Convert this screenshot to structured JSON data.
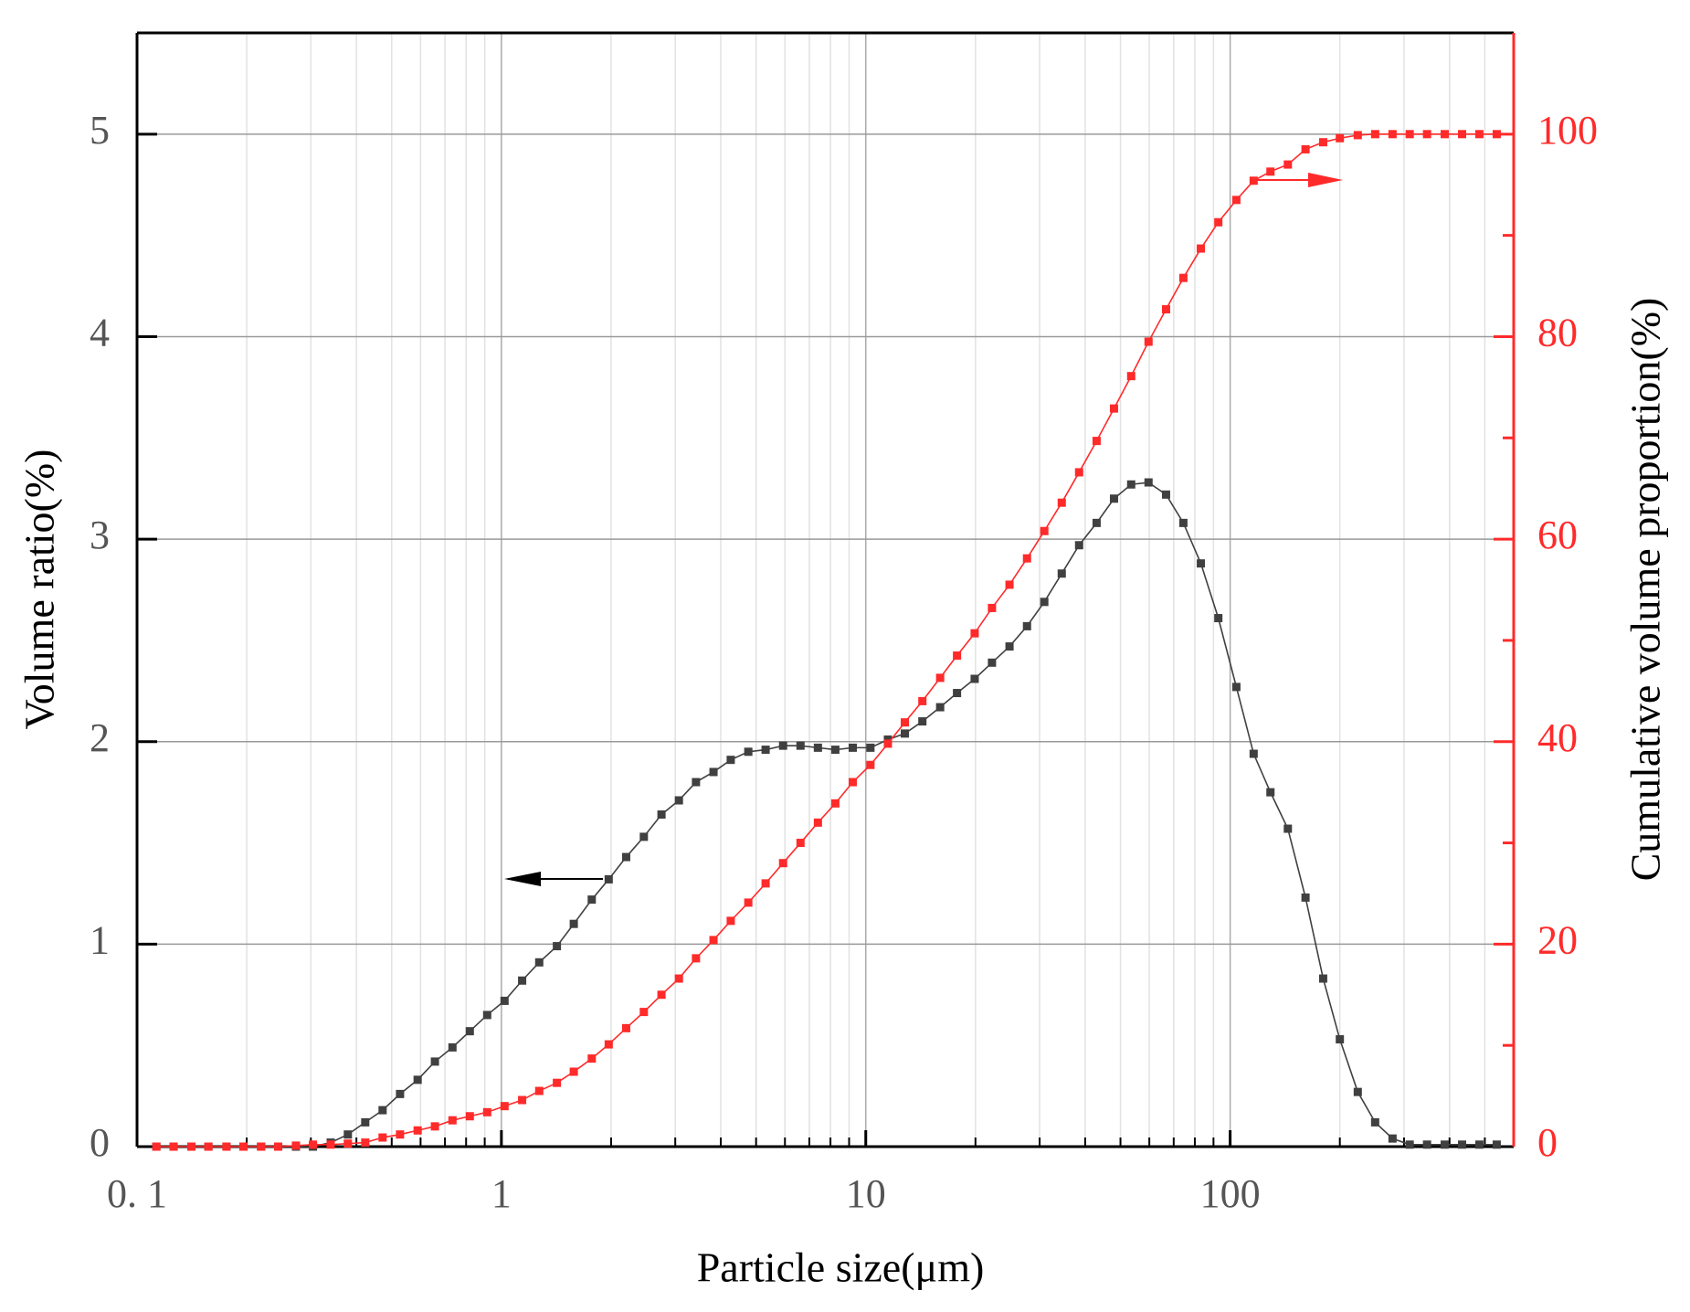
{
  "chart_data": {
    "type": "line",
    "xlabel": "Particle size(μm)",
    "ylabel": "Volume ratio(%)",
    "y2label": "Cumulative volume proportion(%)",
    "xscale": "log",
    "grid": true,
    "xlim": [
      0.1,
      600
    ],
    "xticks": [
      {
        "value": 0.1,
        "label": "0. 1"
      },
      1,
      10,
      100
    ],
    "ylim": [
      0,
      5.5
    ],
    "yticks": [
      0,
      1,
      2,
      3,
      4,
      5
    ],
    "y2lim": [
      0,
      110
    ],
    "y2ticks": [
      0,
      20,
      40,
      60,
      80,
      100
    ],
    "x": [
      0.113,
      0.126,
      0.141,
      0.157,
      0.176,
      0.196,
      0.219,
      0.244,
      0.273,
      0.304,
      0.34,
      0.379,
      0.423,
      0.472,
      0.527,
      0.589,
      0.657,
      0.734,
      0.819,
      0.914,
      1.02,
      1.14,
      1.27,
      1.42,
      1.58,
      1.77,
      1.97,
      2.2,
      2.46,
      2.75,
      3.07,
      3.42,
      3.82,
      4.26,
      4.76,
      5.31,
      5.93,
      6.62,
      7.39,
      8.25,
      9.21,
      10.3,
      11.5,
      12.8,
      14.3,
      16.0,
      17.8,
      19.9,
      22.2,
      24.8,
      27.7,
      30.9,
      34.5,
      38.5,
      43.0,
      48.0,
      53.5,
      59.7,
      66.7,
      74.4,
      83.1,
      92.8,
      104,
      116,
      129,
      144,
      161,
      180,
      200,
      224,
      250,
      279,
      311,
      347,
      388,
      433,
      483,
      539
    ],
    "series": [
      {
        "color": "#404040",
        "values": [
          0,
          0,
          0,
          0,
          0,
          0,
          0,
          0,
          0,
          0,
          0.02,
          0.06,
          0.12,
          0.18,
          0.26,
          0.33,
          0.42,
          0.49,
          0.57,
          0.65,
          0.72,
          0.82,
          0.91,
          0.99,
          1.1,
          1.22,
          1.32,
          1.43,
          1.53,
          1.64,
          1.71,
          1.8,
          1.85,
          1.91,
          1.95,
          1.96,
          1.98,
          1.98,
          1.97,
          1.96,
          1.97,
          1.97,
          2.01,
          2.04,
          2.1,
          2.17,
          2.24,
          2.31,
          2.39,
          2.47,
          2.57,
          2.69,
          2.83,
          2.97,
          3.08,
          3.2,
          3.27,
          3.28,
          3.22,
          3.08,
          2.88,
          2.61,
          2.27,
          1.94,
          1.75,
          1.57,
          1.23,
          0.83,
          0.53,
          0.27,
          0.12,
          0.04,
          0.01,
          0.01,
          0.01,
          0.01,
          0.01,
          0.01
        ]
      },
      {
        "color": "#ff2a2a",
        "axis": "y2",
        "values": [
          0,
          0,
          0,
          0,
          0,
          0,
          0,
          0,
          0.1,
          0.2,
          0.2,
          0.3,
          0.4,
          0.9,
          1.2,
          1.6,
          2.0,
          2.6,
          3.0,
          3.4,
          4.0,
          4.6,
          5.5,
          6.3,
          7.4,
          8.7,
          10.1,
          11.7,
          13.3,
          15.0,
          16.6,
          18.6,
          20.4,
          22.3,
          24.1,
          26.0,
          28.0,
          30.0,
          32.0,
          33.9,
          36.0,
          37.7,
          39.8,
          41.9,
          44.0,
          46.3,
          48.5,
          50.7,
          53.2,
          55.5,
          58.1,
          60.8,
          63.6,
          66.6,
          69.7,
          72.9,
          76.1,
          79.5,
          82.7,
          85.8,
          88.7,
          91.3,
          93.5,
          95.4,
          96.3,
          97.0,
          98.5,
          99.2,
          99.6,
          99.9,
          100,
          100,
          100,
          100,
          100,
          100,
          100,
          100
        ]
      }
    ]
  }
}
